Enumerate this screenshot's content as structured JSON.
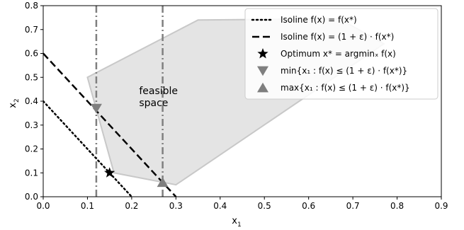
{
  "chart_data": {
    "type": "line",
    "title": "",
    "xlabel": "x",
    "xlabel_sub": "1",
    "ylabel": "x",
    "ylabel_sub": "2",
    "xlim": [
      0.0,
      0.9
    ],
    "ylim": [
      0.0,
      0.8
    ],
    "x_ticks": [
      0.0,
      0.1,
      0.2,
      0.3,
      0.4,
      0.5,
      0.6,
      0.7,
      0.8,
      0.9
    ],
    "x_tick_labels": [
      "0.0",
      "0.1",
      "0.2",
      "0.3",
      "0.4",
      "0.5",
      "0.6",
      "0.7",
      "0.8",
      "0.9"
    ],
    "y_ticks": [
      0.0,
      0.1,
      0.2,
      0.3,
      0.4,
      0.5,
      0.6,
      0.7,
      0.8
    ],
    "y_tick_labels": [
      "0.0",
      "0.1",
      "0.2",
      "0.3",
      "0.4",
      "0.5",
      "0.6",
      "0.7",
      "0.8"
    ],
    "grid": false,
    "legend_position": "top-right",
    "feasible_region": {
      "vertices": [
        [
          0.1,
          0.5
        ],
        [
          0.35,
          0.74
        ],
        [
          0.67,
          0.745
        ],
        [
          0.77,
          0.64
        ],
        [
          0.3,
          0.05
        ],
        [
          0.16,
          0.1
        ]
      ],
      "fill": "#e4e4e4",
      "edge": "#c8c8c8"
    },
    "annotation": {
      "lines": [
        "feasible",
        "space"
      ],
      "x": 0.3,
      "y": 0.43
    },
    "series": [
      {
        "name": "Isoline f(x) = f(x*)",
        "style": "dotted",
        "color": "#000000",
        "points": [
          [
            0.0,
            0.4
          ],
          [
            0.2,
            0.0
          ]
        ]
      },
      {
        "name": "Isoline f(x) = (1 + ε) · f(x*)",
        "style": "dashed",
        "color": "#000000",
        "points": [
          [
            0.0,
            0.6
          ],
          [
            0.3,
            0.0
          ]
        ]
      }
    ],
    "vertical_lines": [
      {
        "x": 0.12,
        "color": "#7f7f7f",
        "style": "dashdot"
      },
      {
        "x": 0.27,
        "color": "#7f7f7f",
        "style": "dashdot"
      }
    ],
    "markers": [
      {
        "name": "Optimum x* = argminₓ f(x)",
        "shape": "star",
        "color": "#000000",
        "x": 0.15,
        "y": 0.1
      },
      {
        "name": "min{x₁ : f(x) ≤ (1 + ε) · f(x*)}",
        "shape": "triangle-down",
        "color": "#7f7f7f",
        "x": 0.12,
        "y": 0.37
      },
      {
        "name": "max{x₁ : f(x) ≤ (1 + ε) · f(x*)}",
        "shape": "triangle-up",
        "color": "#7f7f7f",
        "x": 0.27,
        "y": 0.06
      }
    ],
    "legend": [
      {
        "text": "Isoline f(x) = f(x*)",
        "marker": "dotted-line",
        "color": "#000000"
      },
      {
        "text": "Isoline f(x) = (1 + ε) · f(x*)",
        "marker": "dashed-line",
        "color": "#000000"
      },
      {
        "text": "Optimum x* = argminₓ f(x)",
        "marker": "star",
        "color": "#000000"
      },
      {
        "text": "min{x₁ : f(x) ≤ (1 + ε) · f(x*)}",
        "marker": "triangle-down",
        "color": "#7f7f7f"
      },
      {
        "text": "max{x₁ : f(x) ≤ (1 + ε) · f(x*)}",
        "marker": "triangle-up",
        "color": "#7f7f7f"
      }
    ]
  }
}
